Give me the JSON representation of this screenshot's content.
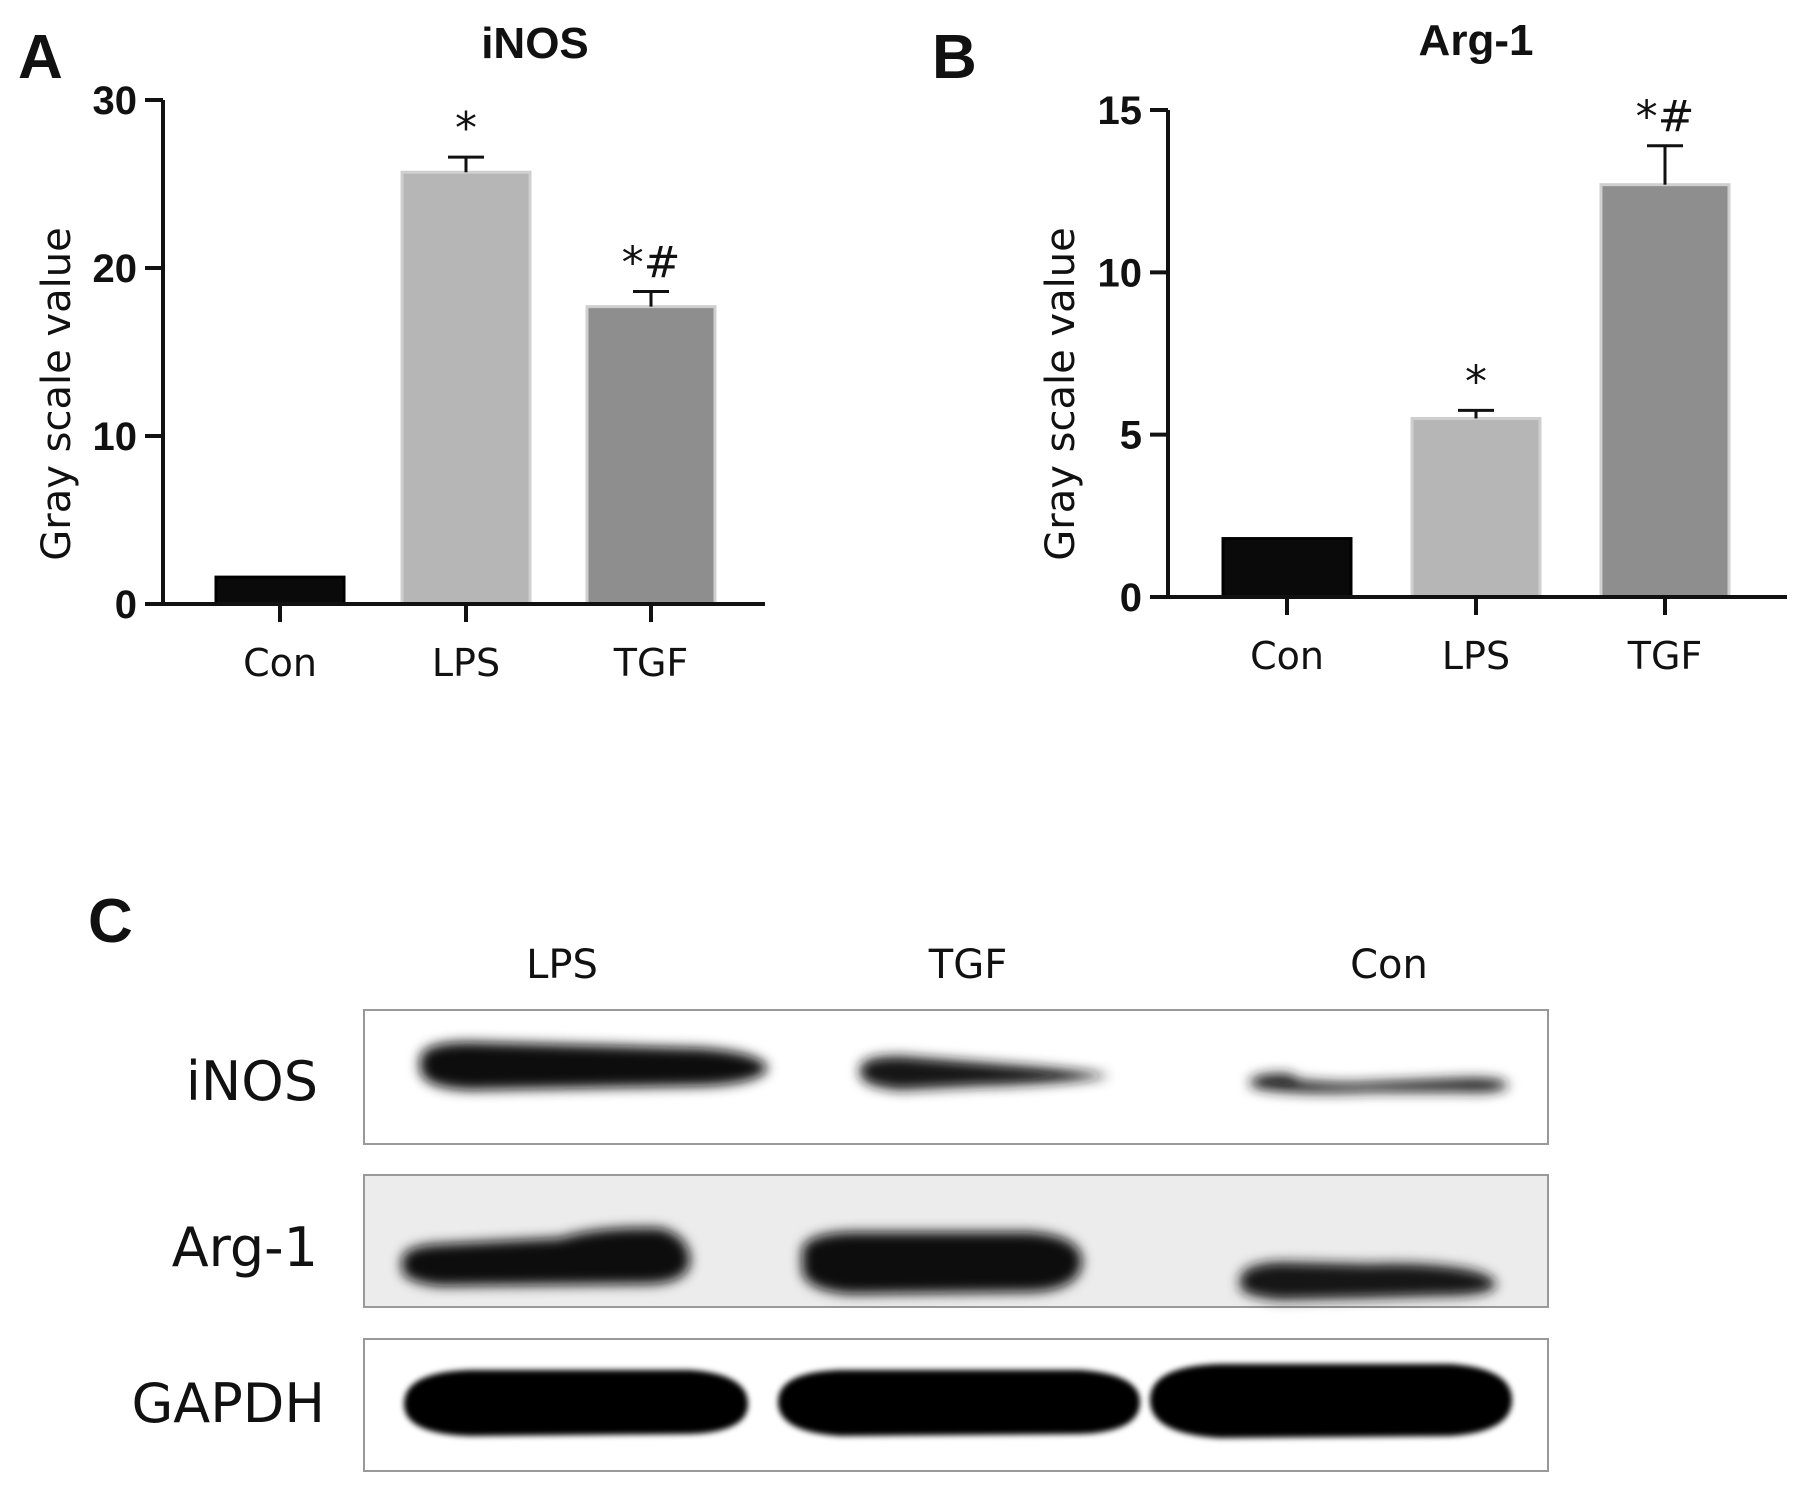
{
  "panels": {
    "a": "A",
    "b": "B",
    "c": "C"
  },
  "chart_data": [
    {
      "type": "bar",
      "title": "iNOS",
      "ylabel": "Gray scale value",
      "xlabel": "",
      "categories": [
        "Con",
        "LPS",
        "TGF"
      ],
      "values": [
        1.6,
        25.7,
        17.7
      ],
      "errors": [
        0,
        0.9,
        0.9
      ],
      "annotations": [
        "",
        "*",
        "*#"
      ],
      "bar_colors": [
        "#0a0a0a",
        "#b6b6b6",
        "#8e8e8e"
      ],
      "ylim": [
        0,
        30
      ],
      "yticks": [
        0,
        10,
        20,
        30
      ]
    },
    {
      "type": "bar",
      "title": "Arg-1",
      "ylabel": "Gray scale value",
      "xlabel": "",
      "categories": [
        "Con",
        "LPS",
        "TGF"
      ],
      "values": [
        1.8,
        5.5,
        12.7
      ],
      "errors": [
        0,
        0.25,
        1.2
      ],
      "annotations": [
        "",
        "*",
        "*#"
      ],
      "bar_colors": [
        "#0a0a0a",
        "#b6b6b6",
        "#8e8e8e"
      ],
      "ylim": [
        0,
        15
      ],
      "yticks": [
        0,
        5,
        10,
        15
      ]
    }
  ],
  "blot": {
    "lanes": [
      "LPS",
      "TGF",
      "Con"
    ],
    "rows": [
      "iNOS",
      "Arg-1",
      "GAPDH"
    ]
  }
}
